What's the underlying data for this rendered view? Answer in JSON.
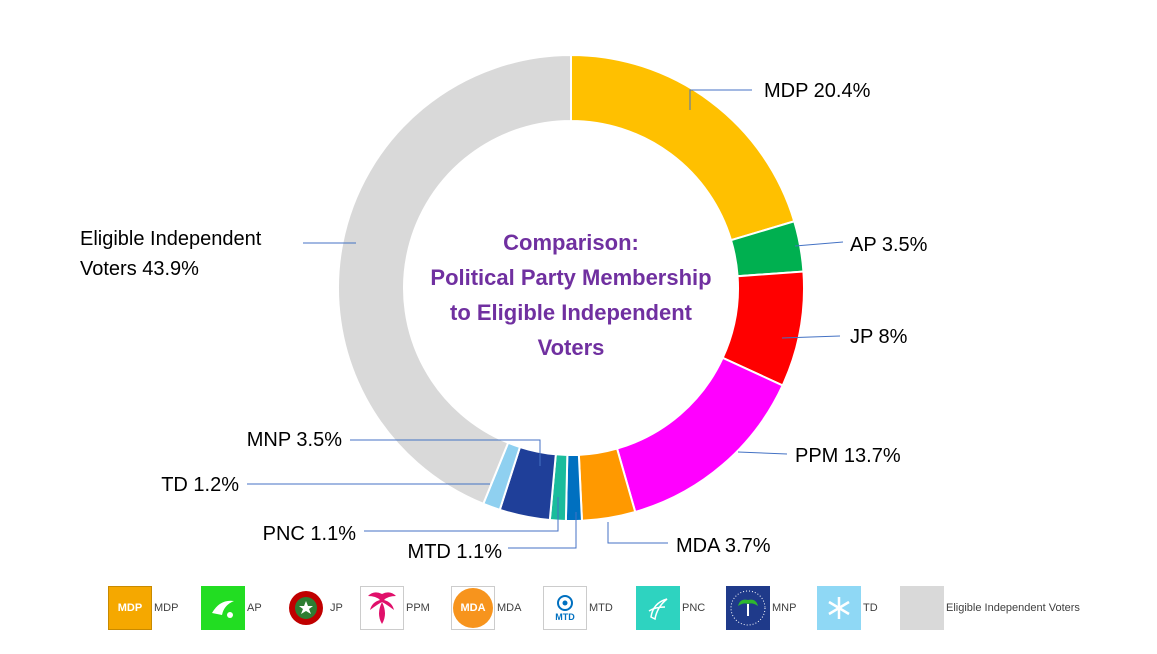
{
  "chart_data": {
    "type": "donut",
    "title": [
      "Comparison:",
      "Political Party Membership",
      "to Eligible Independent",
      "Voters"
    ],
    "series": [
      {
        "name": "MDP",
        "value": 20.4,
        "label": "MDP  20.4%",
        "color": "#FFC000"
      },
      {
        "name": "AP",
        "value": 3.5,
        "label": "AP  3.5%",
        "color": "#00B050"
      },
      {
        "name": "JP",
        "value": 8,
        "label": "JP  8%",
        "color": "#FF0000"
      },
      {
        "name": "PPM",
        "value": 13.7,
        "label": "PPM  13.7%",
        "color": "#FF00FF"
      },
      {
        "name": "MDA",
        "value": 3.7,
        "label": "MDA 3.7%",
        "color": "#FF9900"
      },
      {
        "name": "MTD",
        "value": 1.1,
        "label": "MTD  1.1%",
        "color": "#0070C0"
      },
      {
        "name": "PNC",
        "value": 1.1,
        "label": "PNC  1.1%",
        "color": "#1ABC9C"
      },
      {
        "name": "MNP",
        "value": 3.5,
        "label": "MNP 3.5%",
        "color": "#1F3F99"
      },
      {
        "name": "TD",
        "value": 1.2,
        "label": "TD  1.2%",
        "color": "#8FD0F0"
      },
      {
        "name": "Eligible Independent Voters",
        "value": 43.9,
        "label": [
          "Eligible Independent",
          "Voters  43.9%"
        ],
        "color": "#D9D9D9"
      }
    ]
  },
  "legend": {
    "items": [
      {
        "name": "MDP",
        "label": "MDP",
        "color": "#F5A800",
        "logo_text": "MDP"
      },
      {
        "name": "AP",
        "label": "AP",
        "color": "#22DD22",
        "logo_text": ""
      },
      {
        "name": "JP",
        "label": "JP",
        "color": "#FFFFFF",
        "logo_text": ""
      },
      {
        "name": "PPM",
        "label": "PPM",
        "color": "#FFFFFF",
        "logo_text": ""
      },
      {
        "name": "MDA",
        "label": "MDA",
        "color": "#FFFFFF",
        "logo_text": "MDA"
      },
      {
        "name": "MTD",
        "label": "MTD",
        "color": "#FFFFFF",
        "logo_text": "MTD"
      },
      {
        "name": "PNC",
        "label": "PNC",
        "color": "#2ED3C0",
        "logo_text": ""
      },
      {
        "name": "MNP",
        "label": "MNP",
        "color": "#1F3A8A",
        "logo_text": ""
      },
      {
        "name": "TD",
        "label": "TD",
        "color": "#8FD8F5",
        "logo_text": ""
      },
      {
        "name": "Eligible Independent Voters",
        "label": "Eligible Independent Voters",
        "color": "#D9D9D9",
        "logo_text": ""
      }
    ]
  }
}
